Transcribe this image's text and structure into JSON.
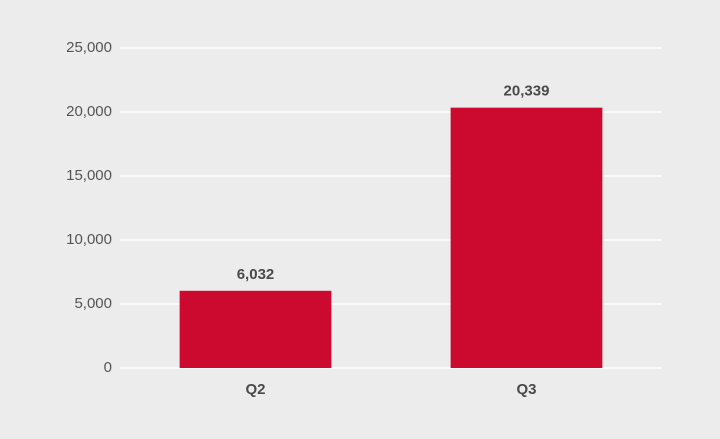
{
  "chart_data": {
    "type": "bar",
    "categories": [
      "Q2",
      "Q3"
    ],
    "values": [
      6032,
      20339
    ],
    "value_labels": [
      "6,032",
      "20,339"
    ],
    "color": "#cc0a2f",
    "ylim": [
      0,
      25000
    ],
    "yticks": [
      0,
      {
        "value": 5000,
        "label": "5,000"
      },
      {
        "value": 10000,
        "label": "10,000"
      },
      {
        "value": 15000,
        "label": "15,000"
      },
      {
        "value": 20000,
        "label": "20,000"
      },
      {
        "value": 25000,
        "label": "25,000"
      }
    ],
    "grid": true
  }
}
